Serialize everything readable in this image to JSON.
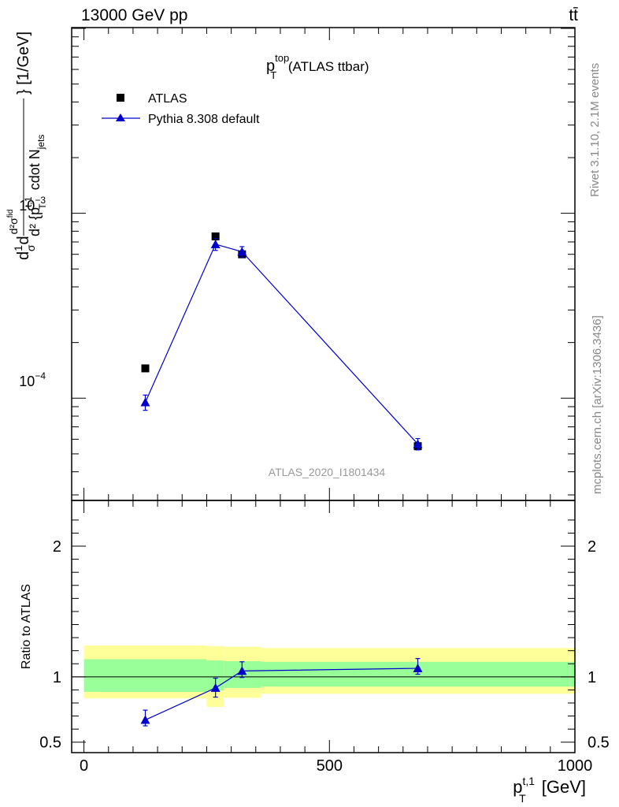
{
  "header": {
    "beam": "13000 GeV pp",
    "process": "tt̄"
  },
  "side_labels": {
    "rivet": "Rivet 3.1.10,  2.1M events",
    "mcplots": "mcplots.cern.ch [arXiv:1306.3436]"
  },
  "analysis_id": "ATLAS_2020_I1801434",
  "colors": {
    "data": "#000000",
    "mc": "#0000cc",
    "band_outer": "#ffff99",
    "band_inner": "#99ff99"
  },
  "chart_data": [
    {
      "type": "scatter",
      "panel": "main",
      "title_main": "p",
      "title_sup": "top",
      "title_sub": "T",
      "title_rest": " (ATLAS ttbar)",
      "ylabel": "d1/σ d²σ^fid / d² {p_T^{t,1} cdot N_jets} [1/GeV]",
      "ylabel_parts": {
        "a": "d",
        "frac_top": "1",
        "frac_bot": "σ",
        "b": "d",
        "num": "d²σ",
        "num_sup": "fid",
        "den_a": "d² {p",
        "den_sup": "t,1",
        "den_sub": "T",
        "den_b": " cdot N",
        "den_sub2": "jets",
        "tail": "} [1/GeV]"
      },
      "yscale": "log",
      "ylim": [
        2.8e-05,
        0.0101
      ],
      "xlim": [
        -25,
        1000
      ],
      "ytick_labels": [
        "10⁻⁴",
        "10⁻³"
      ],
      "ytick_parts": [
        {
          "base": "10",
          "exp": "−4",
          "value": 0.0001
        },
        {
          "base": "10",
          "exp": "−3",
          "value": 0.001
        }
      ],
      "legend_position": "top-left",
      "series": [
        {
          "name": "ATLAS",
          "marker": "square",
          "x": [
            125,
            268,
            322,
            680
          ],
          "y": [
            0.000145,
            0.00075,
            0.0006,
            5.5e-05
          ]
        },
        {
          "name": "Pythia 8.308 default",
          "marker": "triangle",
          "x": [
            125,
            268,
            322,
            680
          ],
          "y": [
            9.5e-05,
            0.00068,
            0.00062,
            5.65e-05
          ],
          "yerr_lo": [
            8.6e-05,
            0.00063,
            0.00058,
            5.25e-05
          ],
          "yerr_hi": [
            0.000104,
            0.00073,
            0.00066,
            6.05e-05
          ]
        }
      ]
    },
    {
      "type": "line",
      "panel": "ratio",
      "ylabel": "Ratio to ATLAS",
      "xlabel_main": "p",
      "xlabel_sup": "t,1",
      "xlabel_sub": "T",
      "xlabel_rest": " [GeV]",
      "ylim": [
        0.42,
        2.35
      ],
      "xlim": [
        -25,
        1000
      ],
      "xtick_labels": [
        "0",
        "500",
        "1000"
      ],
      "xtick_values": [
        0,
        500,
        1000
      ],
      "ytick_labels": [
        "0.5",
        "1",
        "2"
      ],
      "ytick_values": [
        0.5,
        1,
        2
      ],
      "bands": [
        {
          "x_from": 0,
          "x_to": 250,
          "inner": [
            0.885,
            1.135
          ],
          "outer": [
            0.835,
            1.24
          ]
        },
        {
          "x_from": 250,
          "x_to": 285,
          "inner": [
            0.895,
            1.125
          ],
          "outer": [
            0.77,
            1.235
          ]
        },
        {
          "x_from": 285,
          "x_to": 360,
          "inner": [
            0.915,
            1.12
          ],
          "outer": [
            0.84,
            1.23
          ]
        },
        {
          "x_from": 360,
          "x_to": 1000,
          "inner": [
            0.925,
            1.115
          ],
          "outer": [
            0.87,
            1.22
          ]
        }
      ],
      "series": [
        {
          "name": "Pythia 8.308 default",
          "x": [
            125,
            268,
            322,
            680
          ],
          "y": [
            0.67,
            0.915,
            1.045,
            1.065
          ],
          "yerr_lo": [
            0.625,
            0.845,
            0.995,
            1.02
          ],
          "yerr_hi": [
            0.745,
            0.99,
            1.115,
            1.14
          ]
        }
      ]
    }
  ]
}
